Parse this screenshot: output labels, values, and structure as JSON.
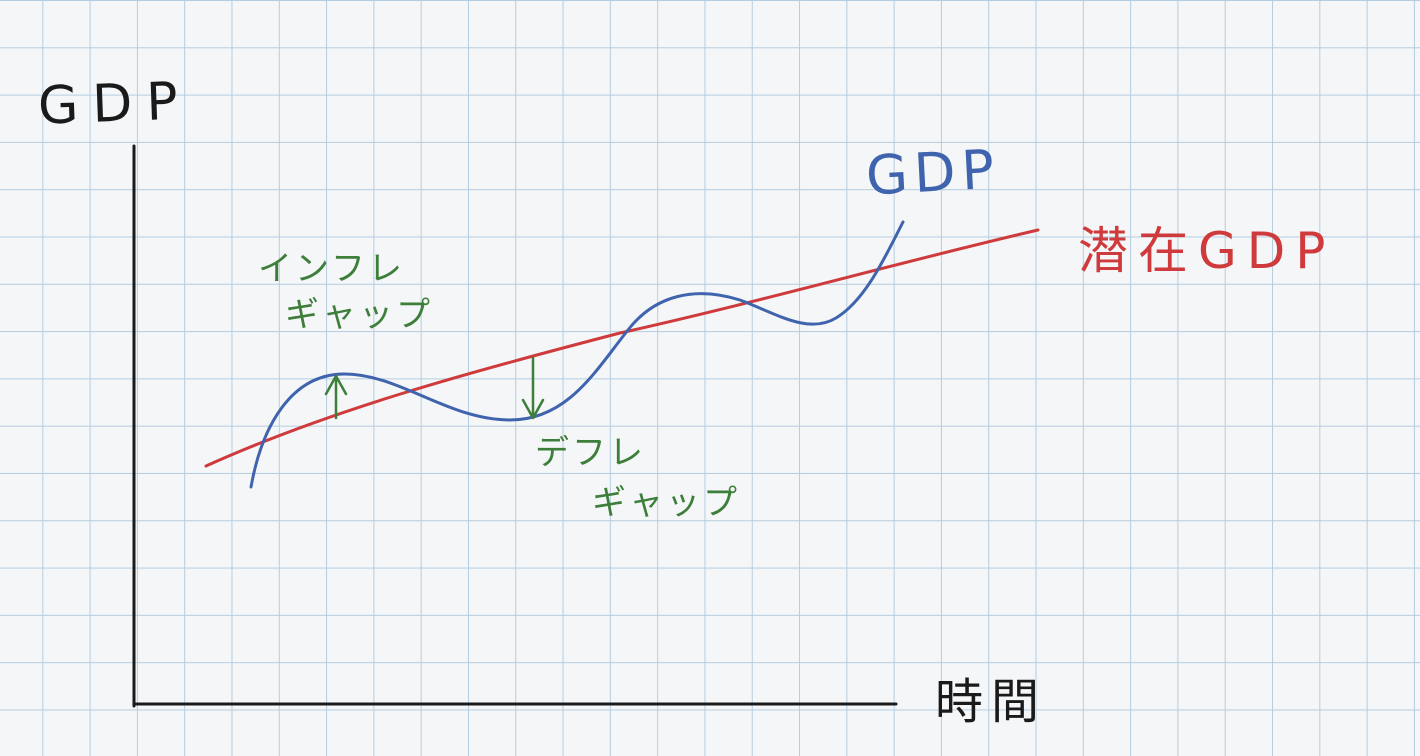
{
  "diagram": {
    "axes": {
      "y_label": "GDP",
      "x_label": "時間"
    },
    "series": {
      "gdp_label": "GDP",
      "potential_label": "潜在GDP"
    },
    "annotations": {
      "inflation_gap_line1": "インフレ",
      "inflation_gap_line2": "ギャップ",
      "deflation_gap_line1": "デフレ",
      "deflation_gap_line2": "ギャップ"
    },
    "colors": {
      "axis": "#1a1a1a",
      "gdp": "#3f63ad",
      "potential": "#cf3a3c",
      "gap": "#3d7f3a",
      "grid": "#b5cde0"
    }
  }
}
